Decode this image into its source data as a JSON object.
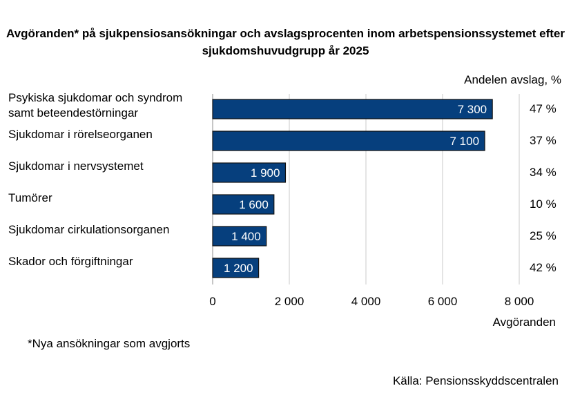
{
  "chart_data": {
    "type": "bar",
    "orientation": "horizontal",
    "title": "Avgöranden* på sjukpensiosansökningar och avslagsprocenten inom arbetspensionssystemet efter sjukdomshuvudgrupp år 2025",
    "categories": [
      "Psykiska sjukdomar och syndrom samt beteendestörningar",
      "Sjukdomar i rörelseorganen",
      "Sjukdomar i nervsystemet",
      "Tumörer",
      "Sjukdomar cirkulationsorganen",
      "Skador och förgiftningar"
    ],
    "values": [
      7300,
      7100,
      1900,
      1600,
      1400,
      1200
    ],
    "value_labels": [
      "7 300",
      "7 100",
      "1 900",
      "1 600",
      "1 400",
      "1 200"
    ],
    "secondary_header": "Andelen avslag, %",
    "rejection_percent": [
      "47 %",
      "37 %",
      "34 %",
      "10 %",
      "25 %",
      "42 %"
    ],
    "xlabel": "Avgöranden",
    "xlim": [
      0,
      8000
    ],
    "xticks": [
      "0",
      "2 000",
      "4 000",
      "6 000",
      "8 000"
    ],
    "grid": true,
    "bar_color": "#063f7d",
    "footnote": "*Nya ansökningar som avgjorts",
    "source": "Källa: Pensionsskyddscentralen"
  }
}
